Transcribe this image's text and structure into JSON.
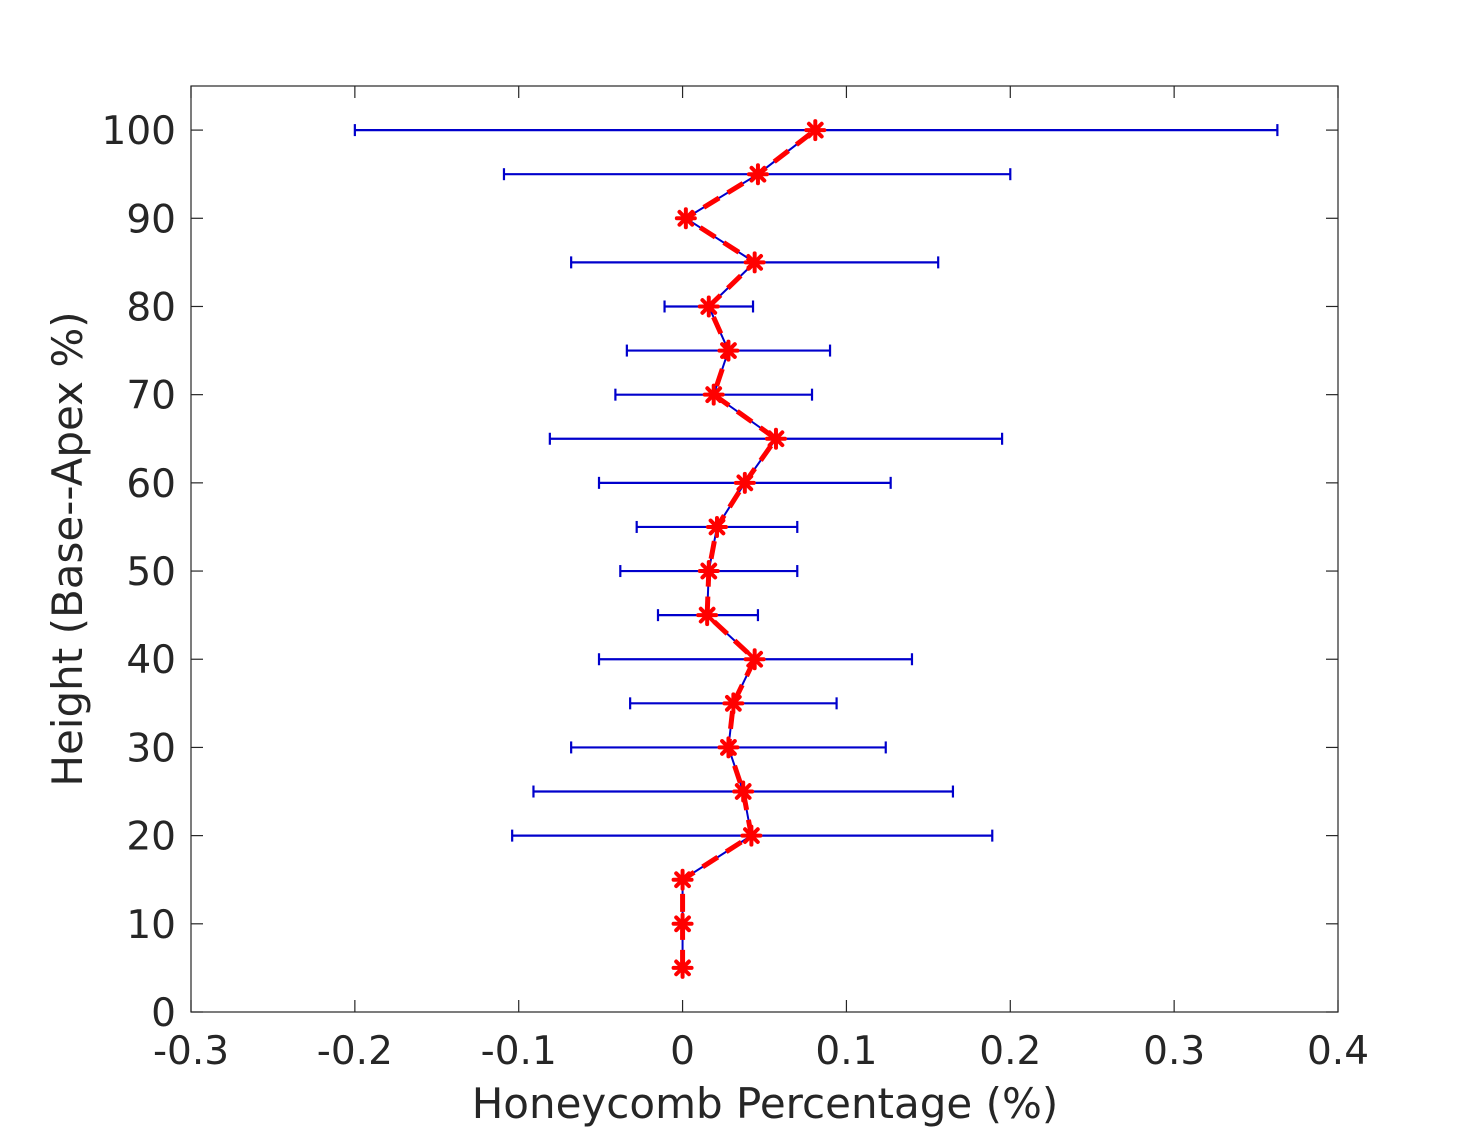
{
  "chart_data": {
    "type": "line",
    "title": "",
    "xlabel": "Honeycomb Percentage (%)",
    "ylabel": "Height (Base--Apex %)",
    "xlim": [
      -0.3,
      0.4
    ],
    "ylim": [
      0,
      105
    ],
    "xticks": [
      -0.3,
      -0.2,
      -0.1,
      0,
      0.1,
      0.2,
      0.3,
      0.4
    ],
    "xtick_labels": [
      "-0.3",
      "-0.2",
      "-0.1",
      "0",
      "0.1",
      "0.2",
      "0.3",
      "0.4"
    ],
    "yticks": [
      0,
      10,
      20,
      30,
      40,
      50,
      60,
      70,
      80,
      90,
      100
    ],
    "ytick_labels": [
      "0",
      "10",
      "20",
      "30",
      "40",
      "50",
      "60",
      "70",
      "80",
      "90",
      "100"
    ],
    "grid": false,
    "series": [
      {
        "color": "#0000cc",
        "style": "solid line with horizontal error bars",
        "points": [
          {
            "y": 5,
            "x": 0.0,
            "xerr_low": 0.0,
            "xerr_high": 0.0
          },
          {
            "y": 10,
            "x": 0.0,
            "xerr_low": 0.0,
            "xerr_high": 0.0
          },
          {
            "y": 15,
            "x": 0.0,
            "xerr_low": 0.0,
            "xerr_high": 0.0
          },
          {
            "y": 20,
            "x": 0.042,
            "xerr_low": -0.104,
            "xerr_high": 0.189
          },
          {
            "y": 25,
            "x": 0.037,
            "xerr_low": -0.091,
            "xerr_high": 0.165
          },
          {
            "y": 30,
            "x": 0.028,
            "xerr_low": -0.068,
            "xerr_high": 0.124
          },
          {
            "y": 35,
            "x": 0.031,
            "xerr_low": -0.032,
            "xerr_high": 0.094
          },
          {
            "y": 40,
            "x": 0.044,
            "xerr_low": -0.051,
            "xerr_high": 0.14
          },
          {
            "y": 45,
            "x": 0.015,
            "xerr_low": -0.015,
            "xerr_high": 0.046
          },
          {
            "y": 50,
            "x": 0.016,
            "xerr_low": -0.038,
            "xerr_high": 0.07
          },
          {
            "y": 55,
            "x": 0.021,
            "xerr_low": -0.028,
            "xerr_high": 0.07
          },
          {
            "y": 60,
            "x": 0.038,
            "xerr_low": -0.051,
            "xerr_high": 0.127
          },
          {
            "y": 65,
            "x": 0.057,
            "xerr_low": -0.081,
            "xerr_high": 0.195
          },
          {
            "y": 70,
            "x": 0.019,
            "xerr_low": -0.041,
            "xerr_high": 0.079
          },
          {
            "y": 75,
            "x": 0.028,
            "xerr_low": -0.034,
            "xerr_high": 0.09
          },
          {
            "y": 80,
            "x": 0.016,
            "xerr_low": -0.011,
            "xerr_high": 0.043
          },
          {
            "y": 85,
            "x": 0.044,
            "xerr_low": -0.068,
            "xerr_high": 0.156
          },
          {
            "y": 90,
            "x": 0.002,
            "xerr_low": 0.0,
            "xerr_high": 0.0
          },
          {
            "y": 95,
            "x": 0.046,
            "xerr_low": -0.109,
            "xerr_high": 0.2
          },
          {
            "y": 100,
            "x": 0.081,
            "xerr_low": -0.2,
            "xerr_high": 0.363
          }
        ]
      },
      {
        "color": "#ff0000",
        "style": "dashed line with star markers",
        "points": [
          {
            "y": 5,
            "x": 0.0
          },
          {
            "y": 10,
            "x": 0.0
          },
          {
            "y": 15,
            "x": 0.0
          },
          {
            "y": 20,
            "x": 0.042
          },
          {
            "y": 25,
            "x": 0.037
          },
          {
            "y": 30,
            "x": 0.028
          },
          {
            "y": 35,
            "x": 0.031
          },
          {
            "y": 40,
            "x": 0.044
          },
          {
            "y": 45,
            "x": 0.015
          },
          {
            "y": 50,
            "x": 0.016
          },
          {
            "y": 55,
            "x": 0.021
          },
          {
            "y": 60,
            "x": 0.038
          },
          {
            "y": 65,
            "x": 0.057
          },
          {
            "y": 70,
            "x": 0.019
          },
          {
            "y": 75,
            "x": 0.028
          },
          {
            "y": 80,
            "x": 0.016
          },
          {
            "y": 85,
            "x": 0.044
          },
          {
            "y": 90,
            "x": 0.002
          },
          {
            "y": 95,
            "x": 0.046
          },
          {
            "y": 100,
            "x": 0.081
          }
        ]
      }
    ]
  }
}
